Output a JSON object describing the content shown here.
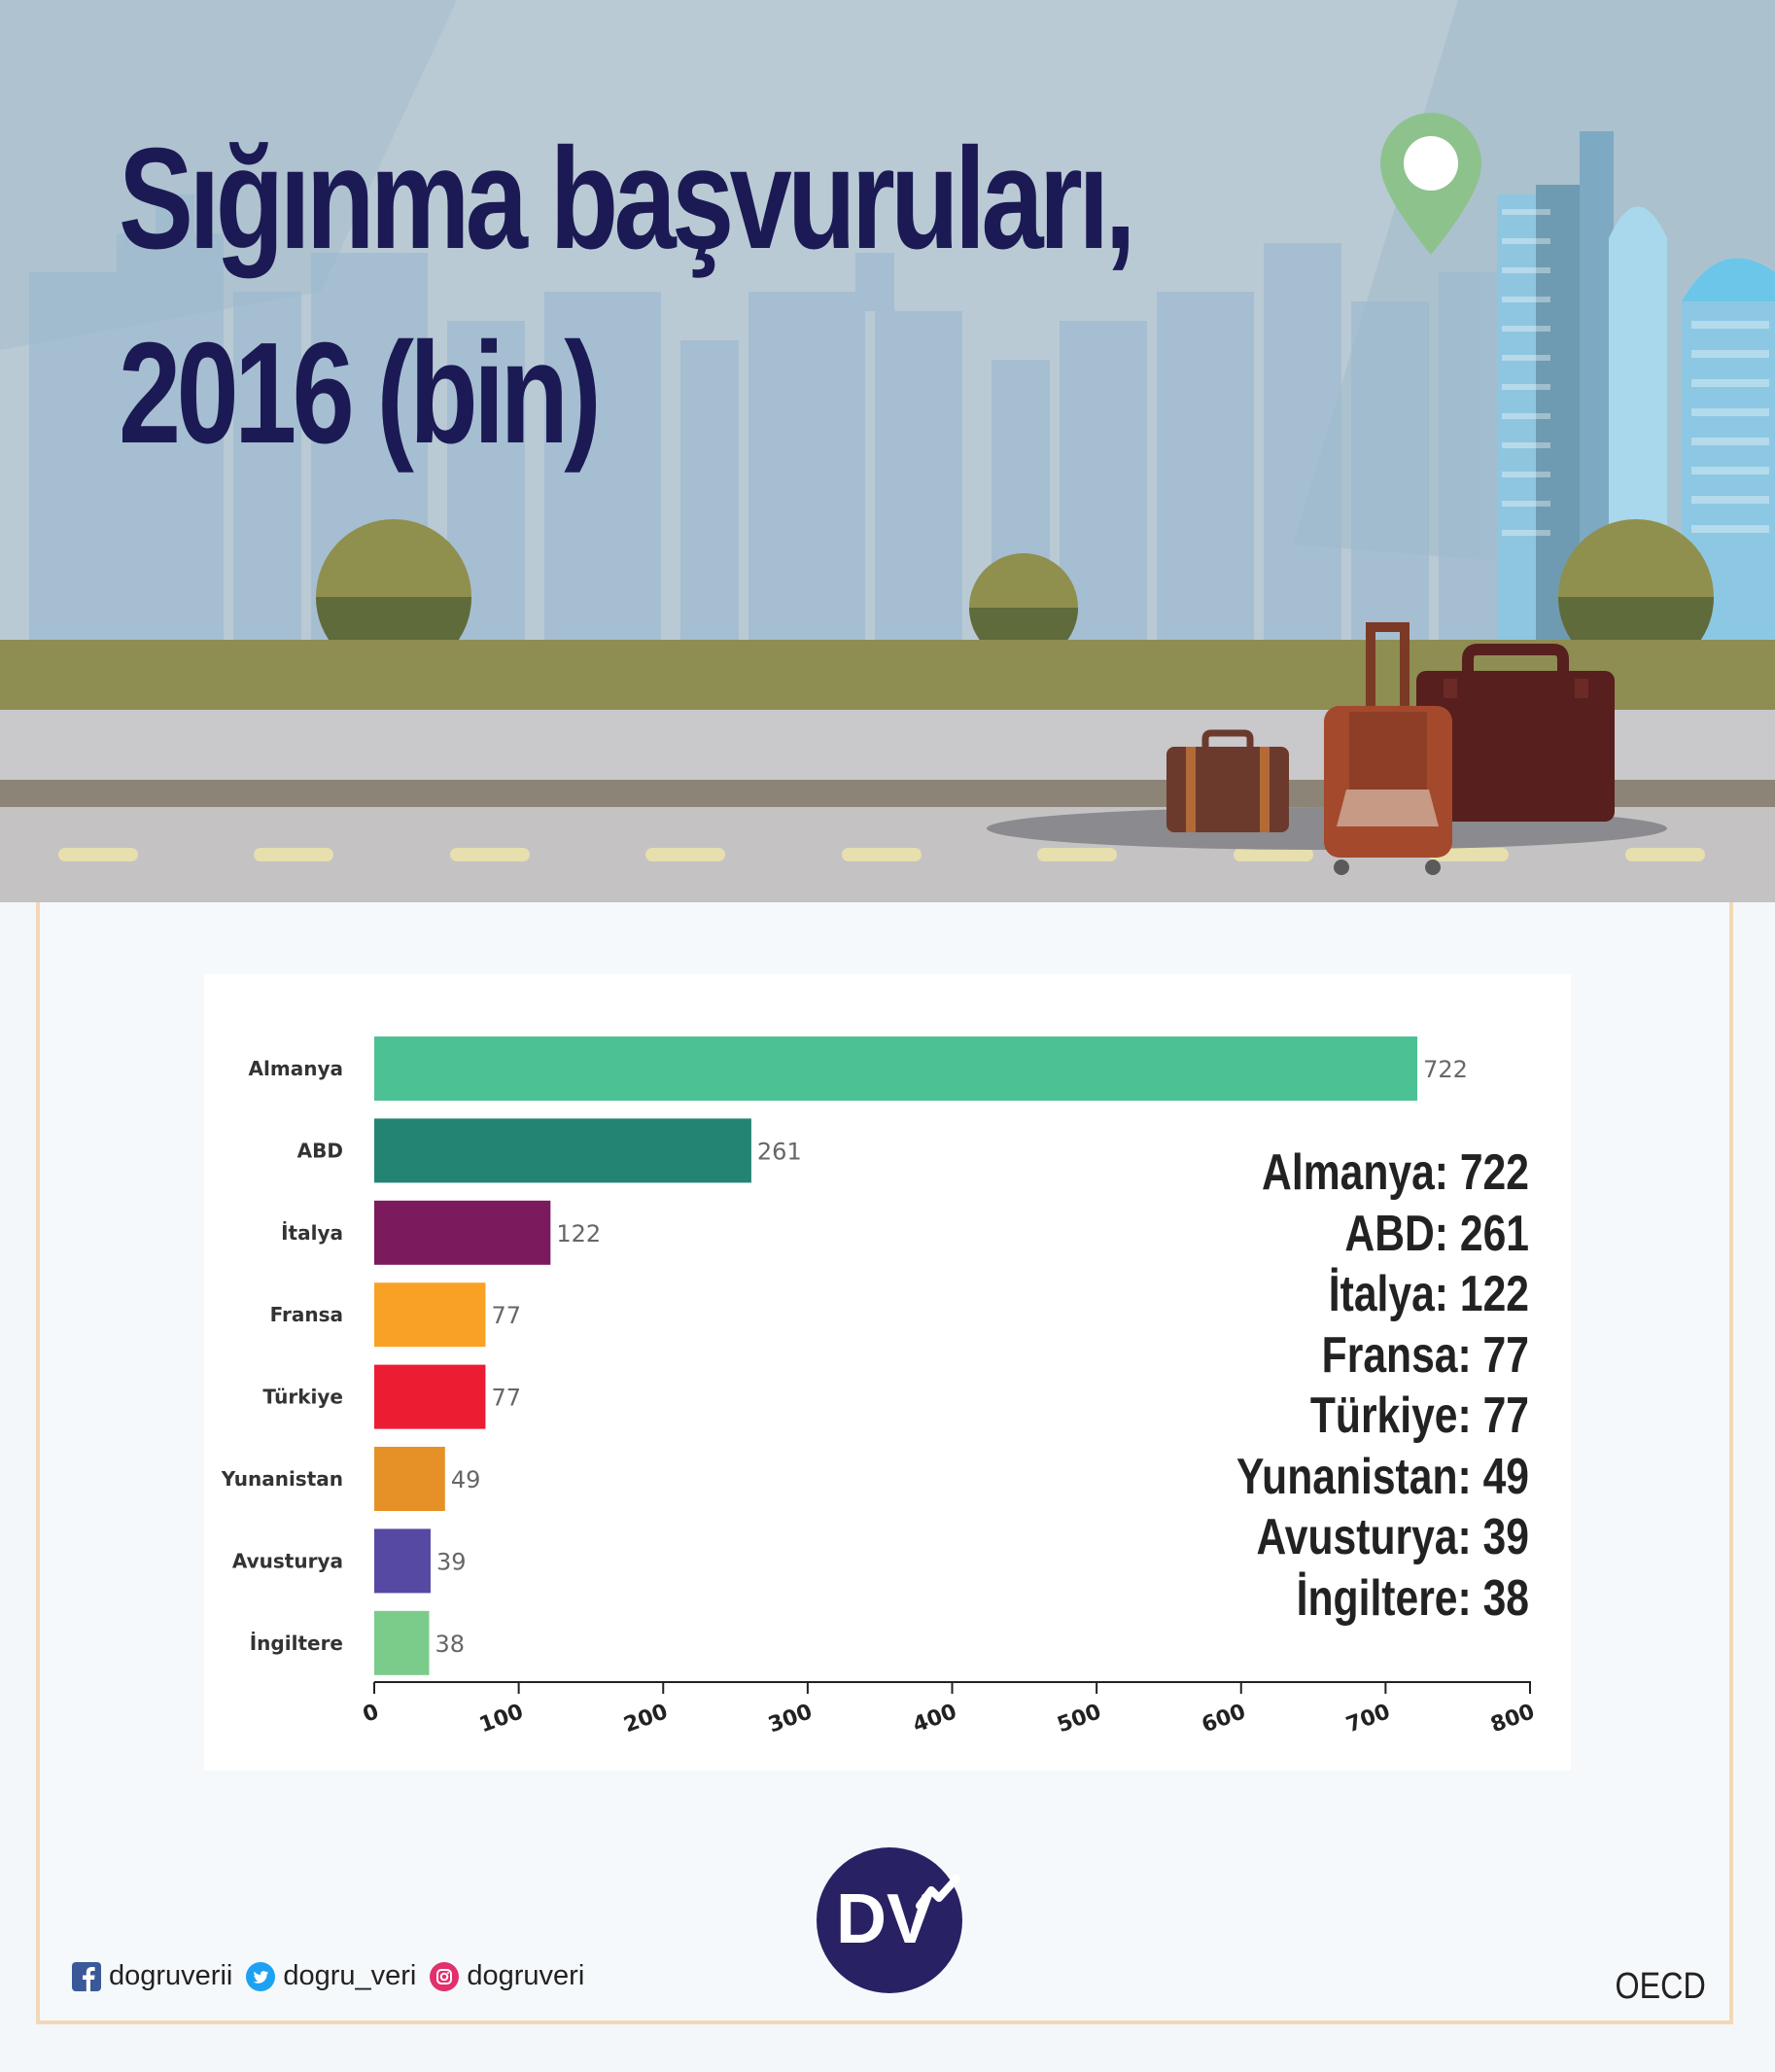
{
  "title_line1": "Sığınma başvuruları,",
  "title_line2": "2016 (bin)",
  "chart_data": {
    "type": "bar",
    "orientation": "horizontal",
    "categories": [
      "Almanya",
      "ABD",
      "İtalya",
      "Fransa",
      "Türkiye",
      "Yunanistan",
      "Avusturya",
      "İngiltere"
    ],
    "values": [
      722,
      261,
      122,
      77,
      77,
      49,
      39,
      38
    ],
    "colors": [
      "#4cc193",
      "#238474",
      "#7b1a5d",
      "#f9a124",
      "#ec1c33",
      "#e69127",
      "#5549a3",
      "#7bcb8b"
    ],
    "xlim": [
      0,
      800
    ],
    "xticks": [
      "0",
      "100",
      "200",
      "300",
      "400",
      "500",
      "600",
      "700",
      "800"
    ],
    "grid": false
  },
  "summary": [
    "Almanya: 722",
    "ABD: 261",
    "İtalya: 122",
    "Fransa: 77",
    "Türkiye: 77",
    "Yunanistan: 49",
    "Avusturya: 39",
    "İngiltere: 38"
  ],
  "logo_text": "DV",
  "social": {
    "facebook": "dogruverii",
    "twitter": "dogru_veri",
    "instagram": "dogruveri"
  },
  "source": "OECD"
}
